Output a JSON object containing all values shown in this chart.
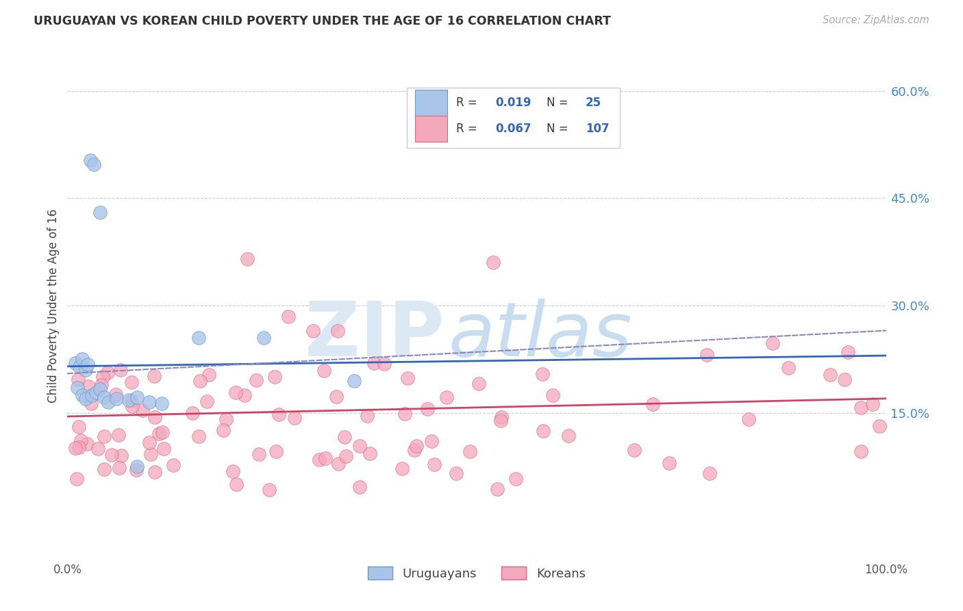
{
  "title": "URUGUAYAN VS KOREAN CHILD POVERTY UNDER THE AGE OF 16 CORRELATION CHART",
  "source": "Source: ZipAtlas.com",
  "ylabel": "Child Poverty Under the Age of 16",
  "blue_color": "#a8c4e8",
  "pink_color": "#f4a8bc",
  "blue_edge_color": "#6699cc",
  "pink_edge_color": "#dd6688",
  "blue_line_color": "#3366bb",
  "pink_line_color": "#cc4466",
  "dashed_line_color": "#8888bb",
  "background_color": "#ffffff",
  "grid_color": "#cccccc",
  "right_tick_color": "#4488cc",
  "uruguayan_R": "0.019",
  "uruguayan_N": "25",
  "korean_R": "0.067",
  "korean_N": "107",
  "xlim": [
    0.0,
    1.0
  ],
  "ylim": [
    -0.05,
    0.65
  ],
  "ytick_positions": [
    0.15,
    0.3,
    0.45,
    0.6
  ],
  "ytick_labels": [
    "15.0%",
    "30.0%",
    "45.0%",
    "60.0%"
  ],
  "blue_line": [
    0.0,
    0.215,
    1.0,
    0.23
  ],
  "pink_line": [
    0.0,
    0.145,
    1.0,
    0.17
  ],
  "dashed_line": [
    0.0,
    0.205,
    1.0,
    0.265
  ],
  "watermark_zip_color": "#dde8f5",
  "watermark_atlas_color": "#c8ddf0"
}
